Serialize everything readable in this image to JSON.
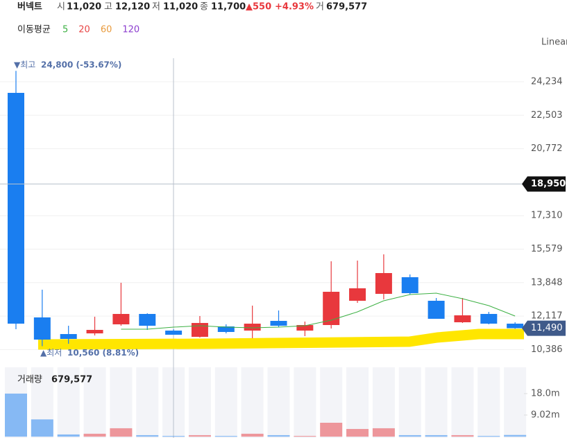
{
  "header": {
    "name": "버넥트",
    "open_label": "시",
    "open": "11,020",
    "high_label": "고",
    "high": "12,120",
    "low_label": "저",
    "low": "11,020",
    "close_label": "종",
    "close": "11,700",
    "change": "▲550",
    "change_pct": "+4.93%",
    "volume_label": "거",
    "volume": "679,577"
  },
  "chart_data": {
    "type": "candlestick",
    "scale_label": "Linear",
    "open": [
      23661,
      12048,
      11188,
      11223,
      11690,
      12228,
      11367,
      11044,
      11582,
      11367,
      11869,
      11367,
      11654,
      12909,
      13267,
      14127,
      12909,
      11797,
      12228,
      11726
    ],
    "high": [
      24800,
      13482,
      11618,
      12083,
      13840,
      12263,
      11439,
      12120,
      11690,
      12658,
      12407,
      11833,
      14951,
      14987,
      15310,
      14270,
      13052,
      13052,
      12335,
      11800
    ],
    "low": [
      11439,
      10560,
      10686,
      11116,
      11618,
      11403,
      11152,
      11009,
      11223,
      10973,
      11546,
      11080,
      11475,
      12801,
      12980,
      13231,
      11977,
      11761,
      11690,
      11460
    ],
    "close": [
      11726,
      10901,
      10937,
      11403,
      12228,
      11618,
      11152,
      11761,
      11296,
      11726,
      11618,
      11654,
      13374,
      13553,
      14342,
      13302,
      11977,
      12156,
      11726,
      11490
    ],
    "up_color": "#e8383d",
    "down_color": "#1a7ef0",
    "ylim": [
      9468,
      25417
    ],
    "yticks": [
      {
        "value": 10386,
        "label": "10,386"
      },
      {
        "value": 12117,
        "label": "12,117"
      },
      {
        "value": 13848,
        "label": "13,848"
      },
      {
        "value": 15579,
        "label": "15,579"
      },
      {
        "value": 17310,
        "label": "17,310"
      },
      {
        "value": 20772,
        "label": "20,772"
      },
      {
        "value": 22503,
        "label": "22,503"
      },
      {
        "value": 24234,
        "label": "24,234"
      }
    ],
    "grid": true,
    "ma_title": "이동평균",
    "ma": [
      {
        "name": "5",
        "color": "#3cb043",
        "values": [
          null,
          null,
          null,
          null,
          11439,
          11439,
          11546,
          11618,
          11546,
          11511,
          11546,
          11618,
          11905,
          12335,
          12909,
          13231,
          13302,
          13016,
          12658,
          12120
        ]
      },
      {
        "name": "20",
        "color": "#e84545"
      },
      {
        "name": "60",
        "color": "#e89a3c"
      },
      {
        "name": "120",
        "color": "#8b3ccf"
      }
    ],
    "high_marker": {
      "label": "최고",
      "text": "24,800 (-53.67%)"
    },
    "low_marker": {
      "label": "최저",
      "text": "10,560 (8.81%)"
    },
    "last_price": {
      "value": 11490,
      "label": "11,490"
    },
    "crosshair": {
      "value": 18950,
      "label": "18,950"
    },
    "volume": {
      "title": "거래량",
      "total": "679,577",
      "values": [
        18.0,
        7.2,
        0.9,
        1.2,
        3.5,
        0.6,
        0.3,
        0.6,
        0.3,
        1.2,
        0.6,
        0.3,
        5.8,
        3.2,
        3.5,
        0.6,
        0.6,
        0.6,
        0.3,
        0.68
      ],
      "ylim": [
        0,
        29
      ],
      "yticks": [
        {
          "value": 9.02,
          "label": "9.02m"
        },
        {
          "value": 18.0,
          "label": "18.0m"
        }
      ]
    }
  }
}
